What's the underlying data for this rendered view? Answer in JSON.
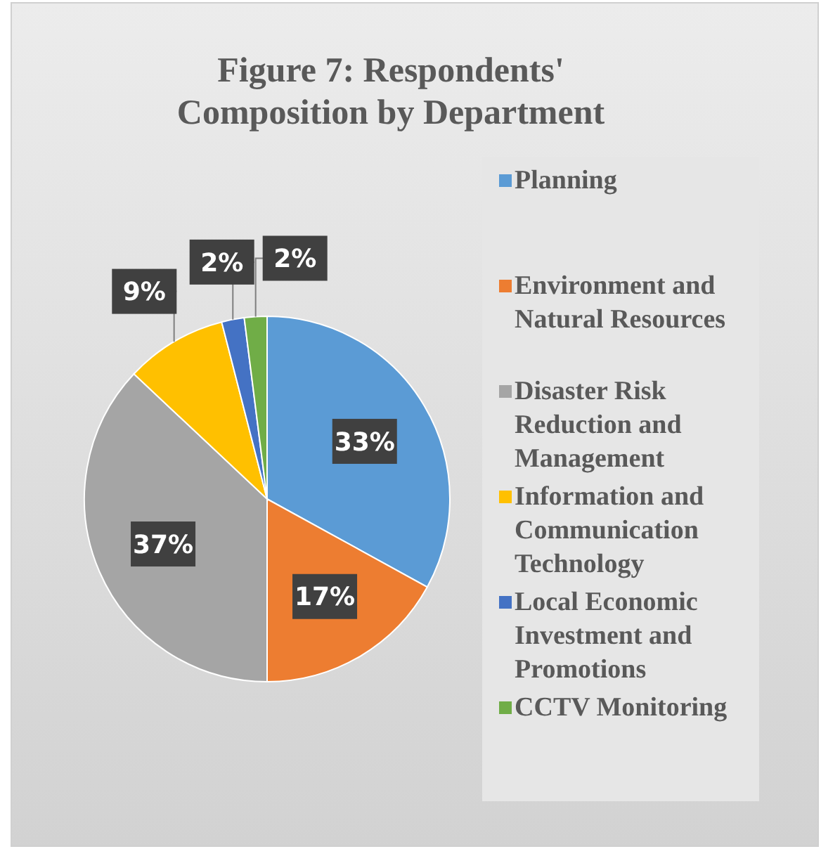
{
  "chart_data": {
    "type": "pie",
    "title": "Figure 7: Respondents' Composition by Department",
    "categories": [
      "Planning",
      "Environment and Natural Resources",
      "Disaster Risk Reduction and Management",
      "Information and Communication Technology",
      "Local Economic Investment and Promotions",
      "CCTV Monitoring"
    ],
    "values": [
      33,
      17,
      37,
      9,
      2,
      2
    ],
    "colors": [
      "#5b9bd5",
      "#ed7d31",
      "#a5a5a5",
      "#ffc000",
      "#4472c4",
      "#70ad47"
    ],
    "value_labels": [
      "33%",
      "17%",
      "37%",
      "9%",
      "2%",
      "2%"
    ],
    "legend": "right"
  }
}
